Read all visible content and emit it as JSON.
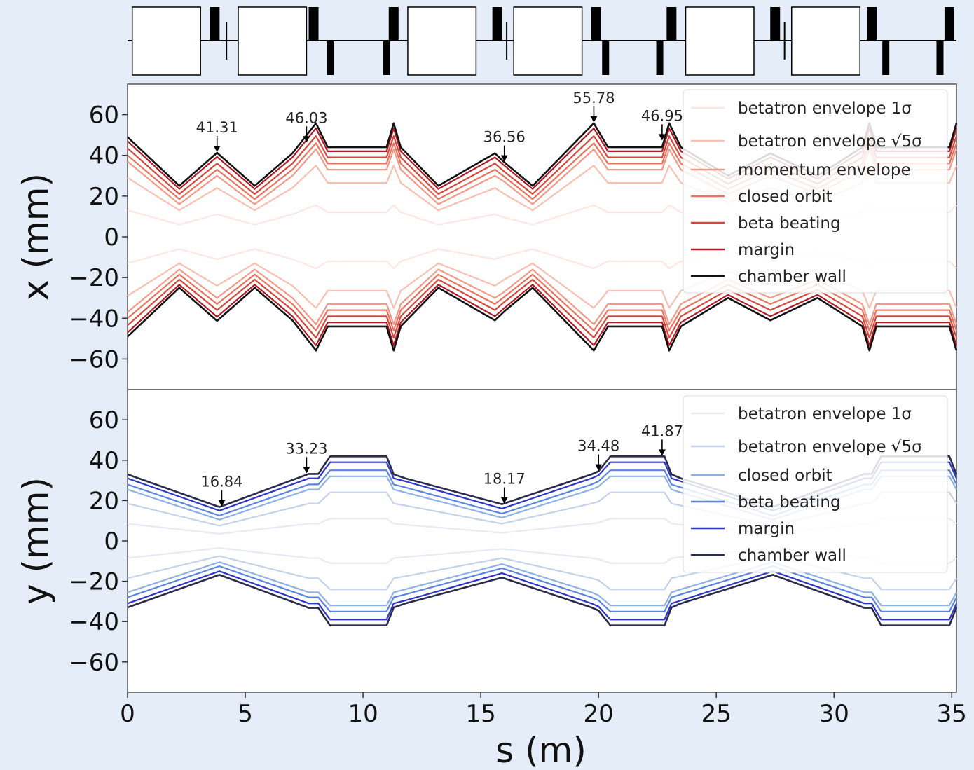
{
  "colors": {
    "figure_bg": "#e4edf8",
    "plot_bg": "#ffffff",
    "red_palette": [
      "#fde7e2",
      "#f9c0b2",
      "#f29a87",
      "#e8735f",
      "#d6483c",
      "#b11b26",
      "#111111"
    ],
    "blue_palette": [
      "#e8eaf4",
      "#c5d2ea",
      "#8fb2e6",
      "#5a85e0",
      "#2d36c9",
      "#2a2a4a"
    ]
  },
  "chart_data": [
    {
      "type": "line",
      "panel": "x-plane",
      "ylabel": "x (mm)",
      "xlim": [
        0,
        35.2
      ],
      "ylim": [
        -75,
        75
      ],
      "yticks": [
        60,
        40,
        20,
        0,
        -20,
        -40,
        -60
      ],
      "ytick_labels": [
        "60",
        "40",
        "20",
        "0",
        "−20",
        "−40",
        "−60"
      ],
      "symmetric_about_zero": true,
      "legend": [
        "betatron envelope 1σ",
        "betatron envelope √5σ",
        "momentum envelope",
        "closed orbit",
        "beta beating",
        "margin",
        "chamber wall"
      ],
      "legend_position": "upper right",
      "s": [
        0,
        2.2,
        3.8,
        5.4,
        7.0,
        8.0,
        8.5,
        11.0,
        11.3,
        11.6,
        13.2,
        15.6,
        16.0,
        17.2,
        19.8,
        20.4,
        22.7,
        23.0,
        23.5,
        25.5,
        27.3,
        29.3,
        31.2,
        31.5,
        31.8,
        34.9,
        35.2
      ],
      "series": [
        {
          "name": "chamber wall",
          "values": [
            49,
            25,
            41.3,
            25,
            41,
            55.8,
            44,
            44,
            55.8,
            44,
            25,
            41,
            36.6,
            25,
            55.8,
            44,
            44,
            55.8,
            44,
            30,
            41,
            30,
            44,
            55.8,
            44,
            44,
            55.8
          ]
        },
        {
          "name": "margin",
          "values": [
            47,
            23.5,
            39.3,
            23.5,
            39,
            53.3,
            42,
            42,
            53.3,
            42,
            23.5,
            39,
            35,
            23.5,
            53.3,
            42,
            42,
            53.3,
            42,
            28.5,
            39,
            28.5,
            42,
            53.3,
            42,
            42,
            53.3
          ]
        },
        {
          "name": "beta beating",
          "values": [
            43.5,
            21,
            36,
            21,
            36,
            49.5,
            39,
            39,
            49.5,
            39,
            21,
            36,
            32,
            21,
            49.5,
            39,
            39,
            49.5,
            39,
            26,
            36,
            26,
            39,
            49.5,
            39,
            39,
            49.5
          ]
        },
        {
          "name": "closed orbit",
          "values": [
            40,
            18.5,
            33,
            18.5,
            33,
            46,
            36,
            36,
            46,
            36,
            18.5,
            33,
            29.5,
            18.5,
            46,
            36,
            36,
            46,
            36,
            23.5,
            33,
            23.5,
            36,
            46,
            36,
            36,
            46
          ]
        },
        {
          "name": "momentum envelope",
          "values": [
            37,
            16,
            30,
            16,
            30,
            43,
            33,
            33,
            43,
            33,
            16,
            30,
            27,
            16,
            43,
            33,
            33,
            43,
            33,
            21,
            30,
            21,
            33,
            43,
            33,
            33,
            43
          ]
        },
        {
          "name": "betatron envelope √5σ",
          "values": [
            29,
            13,
            24,
            13,
            24,
            35,
            26.5,
            26.5,
            35,
            26.5,
            13,
            24,
            21,
            13,
            35,
            26.5,
            26.5,
            35,
            26.5,
            17,
            24,
            17,
            26.5,
            35,
            26.5,
            26.5,
            35
          ]
        },
        {
          "name": "betatron envelope 1σ",
          "values": [
            13,
            6,
            11,
            6,
            11,
            15.5,
            12,
            12,
            15.5,
            12,
            6,
            11,
            9.5,
            6,
            15.5,
            12,
            12,
            15.5,
            12,
            7.5,
            11,
            7.5,
            12,
            15.5,
            12,
            12,
            15.5
          ]
        }
      ],
      "annotations": [
        {
          "label": "41.31",
          "s": 3.8,
          "y": 41.3
        },
        {
          "label": "46.03",
          "s": 7.6,
          "y": 46
        },
        {
          "label": "36.56",
          "s": 16.0,
          "y": 36.6
        },
        {
          "label": "55.78",
          "s": 19.8,
          "y": 55.8
        },
        {
          "label": "46.95",
          "s": 22.7,
          "y": 47
        }
      ]
    },
    {
      "type": "line",
      "panel": "y-plane",
      "ylabel": "y (mm)",
      "xlabel": "s (m)",
      "xlim": [
        0,
        35.2
      ],
      "ylim": [
        -75,
        75
      ],
      "xticks": [
        0,
        5,
        10,
        15,
        20,
        25,
        30,
        35
      ],
      "xtick_labels": [
        "0",
        "5",
        "10",
        "15",
        "20",
        "25",
        "30",
        "35"
      ],
      "yticks": [
        60,
        40,
        20,
        0,
        -20,
        -40,
        -60
      ],
      "ytick_labels": [
        "60",
        "40",
        "20",
        "0",
        "−20",
        "−40",
        "−60"
      ],
      "symmetric_about_zero": true,
      "legend": [
        "betatron envelope 1σ",
        "betatron envelope √5σ",
        "closed orbit",
        "beta beating",
        "margin",
        "chamber wall"
      ],
      "legend_position": "upper right",
      "s": [
        0,
        3.9,
        7.7,
        8.1,
        8.6,
        11.0,
        11.3,
        11.8,
        15.9,
        19.7,
        20.0,
        20.5,
        22.8,
        23.1,
        23.5,
        27.4,
        31.3,
        31.6,
        32.0,
        34.9,
        35.2
      ],
      "series": [
        {
          "name": "chamber wall",
          "values": [
            33,
            16.8,
            33.2,
            33.2,
            41.9,
            41.9,
            33,
            31,
            18.2,
            33,
            34.5,
            41.9,
            41.9,
            33,
            31,
            16.8,
            33.2,
            33.2,
            41.9,
            41.9,
            33
          ]
        },
        {
          "name": "margin",
          "values": [
            31,
            15,
            31,
            31,
            39,
            39,
            31,
            29.5,
            16,
            31,
            32.5,
            39,
            39,
            31,
            29.5,
            15,
            31,
            31,
            39,
            39,
            31
          ]
        },
        {
          "name": "beta beating",
          "values": [
            28,
            12.5,
            28,
            28,
            35,
            35,
            28,
            26.5,
            13.5,
            28,
            29.5,
            35,
            35,
            28,
            26.5,
            12.5,
            28,
            28,
            35,
            35,
            28
          ]
        },
        {
          "name": "closed orbit",
          "values": [
            25.5,
            10.5,
            25.5,
            25.5,
            32,
            32,
            25.5,
            24,
            11.5,
            25.5,
            27,
            32,
            32,
            25.5,
            24,
            10.5,
            25.5,
            25.5,
            32,
            32,
            25.5
          ]
        },
        {
          "name": "betatron envelope √5σ",
          "values": [
            18.5,
            7.5,
            18.5,
            18.5,
            24,
            24,
            18.5,
            17.5,
            8.5,
            18.5,
            19.5,
            24,
            24,
            18.5,
            17.5,
            7.5,
            18.5,
            18.5,
            24,
            24,
            18.5
          ]
        },
        {
          "name": "betatron envelope 1σ",
          "values": [
            8.5,
            3.5,
            8.5,
            8.5,
            11,
            11,
            8.5,
            8,
            4,
            8.5,
            9,
            11,
            11,
            8.5,
            8,
            3.5,
            8.5,
            8.5,
            11,
            11,
            8.5
          ]
        }
      ],
      "annotations": [
        {
          "label": "16.84",
          "s": 4.0,
          "y": 16.8
        },
        {
          "label": "33.23",
          "s": 7.6,
          "y": 33.2
        },
        {
          "label": "18.17",
          "s": 16.0,
          "y": 18.2
        },
        {
          "label": "34.48",
          "s": 20.0,
          "y": 34.5
        },
        {
          "label": "41.87",
          "s": 22.7,
          "y": 41.9
        }
      ]
    }
  ],
  "lattice": {
    "dipoles": [
      [
        0.2,
        3.1
      ],
      [
        4.7,
        7.6
      ],
      [
        11.9,
        14.8
      ],
      [
        16.4,
        19.3
      ],
      [
        23.7,
        26.6
      ],
      [
        28.2,
        31.1
      ]
    ],
    "quads_focusing": [
      3.7,
      7.9,
      11.3,
      15.7,
      19.9,
      23.1,
      27.5,
      31.6,
      34.9
    ],
    "quads_defocusing": [
      8.6,
      11.0,
      20.3,
      22.6,
      32.2,
      34.5
    ],
    "thin_elements": [
      4.2,
      16.1,
      27.9
    ]
  }
}
